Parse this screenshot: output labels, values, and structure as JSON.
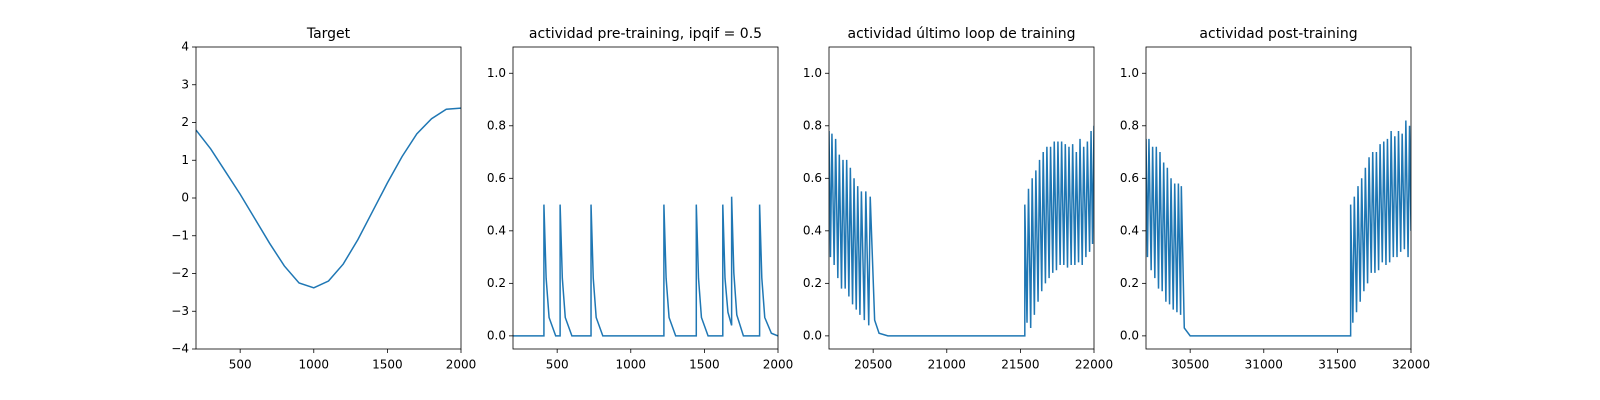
{
  "chart_data": [
    {
      "type": "line",
      "title": "Target",
      "color": "#1f77b4",
      "x": [
        200,
        300,
        400,
        500,
        600,
        700,
        800,
        900,
        1000,
        1100,
        1200,
        1300,
        1400,
        1500,
        1600,
        1700,
        1800,
        1900,
        2000
      ],
      "values": [
        1.8,
        1.3,
        0.7,
        0.1,
        -0.55,
        -1.2,
        -1.8,
        -2.25,
        -2.38,
        -2.2,
        -1.75,
        -1.1,
        -0.35,
        0.4,
        1.1,
        1.7,
        2.1,
        2.35,
        2.38
      ],
      "xlim": [
        200,
        2000
      ],
      "ylim": [
        -4,
        4
      ],
      "xticks": [
        500,
        1000,
        1500,
        2000
      ],
      "yticks": [
        {
          "value": -4,
          "label": "−4"
        },
        {
          "value": -3,
          "label": "−3"
        },
        {
          "value": -2,
          "label": "−2"
        },
        {
          "value": -1,
          "label": "−1"
        },
        0,
        1,
        2,
        3,
        4
      ]
    },
    {
      "type": "line",
      "title": "actividad pre-training, ipqif = 0.5",
      "color": "#1f77b4",
      "x": [
        200,
        410,
        410,
        425,
        445,
        490,
        520,
        520,
        535,
        555,
        600,
        730,
        730,
        745,
        765,
        810,
        1225,
        1225,
        1240,
        1260,
        1305,
        1445,
        1445,
        1460,
        1480,
        1525,
        1625,
        1625,
        1640,
        1660,
        1685,
        1685,
        1700,
        1720,
        1765,
        1875,
        1875,
        1890,
        1910,
        1955,
        2000
      ],
      "values": [
        0,
        0,
        0.5,
        0.22,
        0.07,
        0,
        0,
        0.5,
        0.22,
        0.07,
        0,
        0,
        0.5,
        0.22,
        0.07,
        0,
        0,
        0.5,
        0.22,
        0.07,
        0,
        0,
        0.5,
        0.22,
        0.07,
        0,
        0,
        0.5,
        0.22,
        0.09,
        0.04,
        0.53,
        0.24,
        0.08,
        0,
        0,
        0.5,
        0.22,
        0.07,
        0.01,
        0
      ],
      "xlim": [
        200,
        2000
      ],
      "ylim": [
        -0.05,
        1.1
      ],
      "xticks": [
        500,
        1000,
        1500,
        2000
      ],
      "yticks": [
        {
          "value": 0,
          "label": "0.0"
        },
        0.2,
        0.4,
        0.6,
        0.8,
        {
          "value": 1,
          "label": "1.0"
        }
      ]
    },
    {
      "type": "line",
      "title": "actividad último loop de training",
      "color": "#1f77b4",
      "x": [
        20200,
        20210,
        20220,
        20235,
        20245,
        20260,
        20270,
        20285,
        20295,
        20310,
        20320,
        20335,
        20345,
        20360,
        20370,
        20385,
        20395,
        20410,
        20420,
        20440,
        20450,
        20470,
        20480,
        20510,
        20540,
        20600,
        21530,
        21530,
        21545,
        21555,
        21570,
        21580,
        21595,
        21605,
        21620,
        21630,
        21645,
        21655,
        21670,
        21680,
        21695,
        21705,
        21720,
        21730,
        21745,
        21755,
        21770,
        21780,
        21795,
        21805,
        21820,
        21830,
        21845,
        21855,
        21870,
        21880,
        21895,
        21905,
        21920,
        21930,
        21945,
        21955,
        21970,
        21980,
        21990,
        22000
      ],
      "values": [
        0.78,
        0.3,
        0.77,
        0.27,
        0.75,
        0.22,
        0.69,
        0.18,
        0.67,
        0.18,
        0.67,
        0.15,
        0.64,
        0.12,
        0.6,
        0.1,
        0.57,
        0.08,
        0.55,
        0.06,
        0.55,
        0.04,
        0.53,
        0.06,
        0.01,
        0,
        0,
        0.5,
        0.05,
        0.56,
        0.03,
        0.6,
        0.08,
        0.63,
        0.13,
        0.67,
        0.17,
        0.7,
        0.2,
        0.72,
        0.22,
        0.72,
        0.24,
        0.74,
        0.25,
        0.74,
        0.27,
        0.74,
        0.27,
        0.73,
        0.26,
        0.72,
        0.27,
        0.73,
        0.27,
        0.7,
        0.28,
        0.75,
        0.27,
        0.72,
        0.3,
        0.74,
        0.32,
        0.78,
        0.35,
        0.8
      ],
      "xlim": [
        20200,
        22000
      ],
      "ylim": [
        -0.05,
        1.1
      ],
      "xticks": [
        20500,
        21000,
        21500,
        22000
      ],
      "yticks": [
        {
          "value": 0,
          "label": "0.0"
        },
        0.2,
        0.4,
        0.6,
        0.8,
        {
          "value": 1,
          "label": "1.0"
        }
      ]
    },
    {
      "type": "line",
      "title": "actividad post-training",
      "color": "#1f77b4",
      "x": [
        30200,
        30210,
        30220,
        30235,
        30245,
        30260,
        30270,
        30285,
        30295,
        30310,
        30320,
        30335,
        30345,
        30360,
        30370,
        30385,
        30395,
        30410,
        30420,
        30435,
        30440,
        30460,
        30500,
        31590,
        31590,
        31605,
        31615,
        31630,
        31640,
        31655,
        31665,
        31680,
        31690,
        31705,
        31715,
        31730,
        31740,
        31755,
        31765,
        31780,
        31790,
        31805,
        31815,
        31830,
        31840,
        31855,
        31865,
        31880,
        31890,
        31905,
        31915,
        31930,
        31940,
        31955,
        31965,
        31980,
        31990,
        32000
      ],
      "values": [
        0.75,
        0.3,
        0.75,
        0.25,
        0.72,
        0.22,
        0.72,
        0.18,
        0.7,
        0.17,
        0.66,
        0.13,
        0.64,
        0.12,
        0.6,
        0.1,
        0.58,
        0.09,
        0.58,
        0.08,
        0.57,
        0.03,
        0,
        0,
        0.5,
        0.05,
        0.53,
        0.09,
        0.57,
        0.13,
        0.6,
        0.17,
        0.64,
        0.2,
        0.68,
        0.24,
        0.7,
        0.24,
        0.7,
        0.25,
        0.73,
        0.28,
        0.74,
        0.27,
        0.75,
        0.28,
        0.78,
        0.3,
        0.76,
        0.3,
        0.78,
        0.32,
        0.77,
        0.33,
        0.82,
        0.3,
        0.8,
        0.4
      ],
      "xlim": [
        30200,
        32000
      ],
      "ylim": [
        -0.05,
        1.1
      ],
      "xticks": [
        30500,
        31000,
        31500,
        32000
      ],
      "yticks": [
        {
          "value": 0,
          "label": "0.0"
        },
        0.2,
        0.4,
        0.6,
        0.8,
        {
          "value": 1,
          "label": "1.0"
        }
      ]
    }
  ]
}
